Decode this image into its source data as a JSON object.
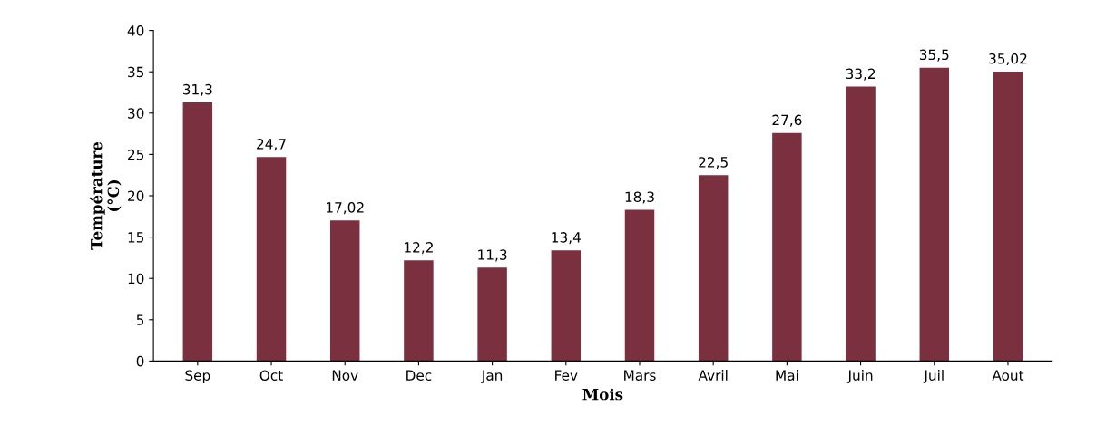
{
  "chart_data": {
    "type": "bar",
    "xlabel": "Mois",
    "ylabel": "Température\n(°C)",
    "categories": [
      "Sep",
      "Oct",
      "Nov",
      "Dec",
      "Jan",
      "Fev",
      "Mars",
      "Avril",
      "Mai",
      "Juin",
      "Juil",
      "Aout"
    ],
    "values": [
      31.3,
      24.7,
      17.02,
      12.2,
      11.3,
      13.4,
      18.3,
      22.5,
      27.6,
      33.2,
      35.5,
      35.02
    ],
    "value_labels": [
      "31,3",
      "24,7",
      "17,02",
      "12,2",
      "11,3",
      "13,4",
      "18,3",
      "22,5",
      "27,6",
      "33,2",
      "35,5",
      "35,02"
    ],
    "color": "#7b3040",
    "ylim": [
      0,
      40
    ],
    "yticks": [
      0,
      5,
      10,
      15,
      20,
      25,
      30,
      35,
      40
    ],
    "grid": false
  }
}
